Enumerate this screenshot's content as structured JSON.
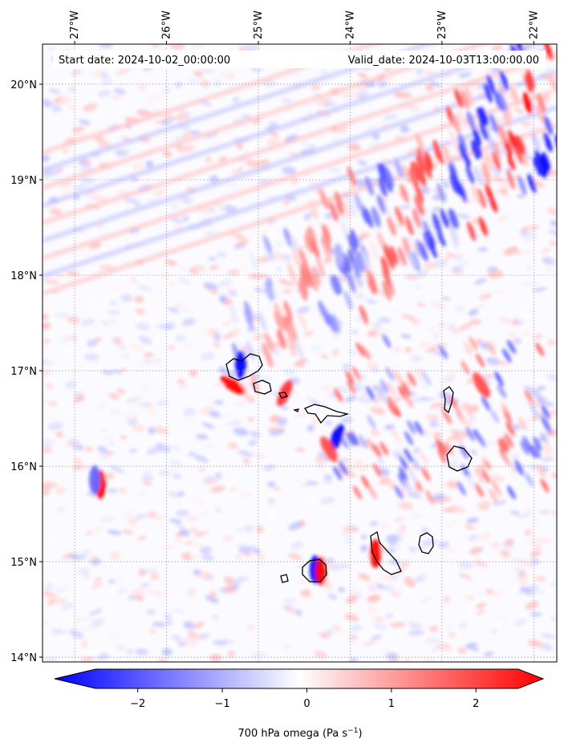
{
  "header": {
    "start_date": "Start date: 2024-10-02_00:00:00",
    "valid_date": "Valid_date: 2024-10-03T13:00:00.00"
  },
  "map": {
    "lon_labels": [
      "27°W",
      "26°W",
      "25°W",
      "24°W",
      "23°W",
      "22°W"
    ],
    "lat_labels": [
      "20°N",
      "19°N",
      "18°N",
      "17°N",
      "16°N",
      "15°N",
      "14°N"
    ],
    "lon_values": [
      -27,
      -26,
      -25,
      -24,
      -23,
      -22
    ],
    "lat_values": [
      20,
      19,
      18,
      17,
      16,
      15,
      14
    ],
    "extent": {
      "lon_min": -27.35,
      "lon_max": -21.75,
      "lat_min": 13.95,
      "lat_max": 20.42
    },
    "gridlines": true
  },
  "colorbar": {
    "label": "700 hPa omega (Pa s",
    "label_sup": "−1",
    "label_end": ")",
    "ticks": [
      "−2",
      "−1",
      "0",
      "1",
      "2"
    ],
    "tick_values": [
      -2,
      -1,
      0,
      1,
      2
    ],
    "vmin": -2.5,
    "vmax": 2.5,
    "cmap": "bwr",
    "low_color": "#0000ff",
    "mid_color": "#ffffff",
    "high_color": "#ff0000"
  }
}
